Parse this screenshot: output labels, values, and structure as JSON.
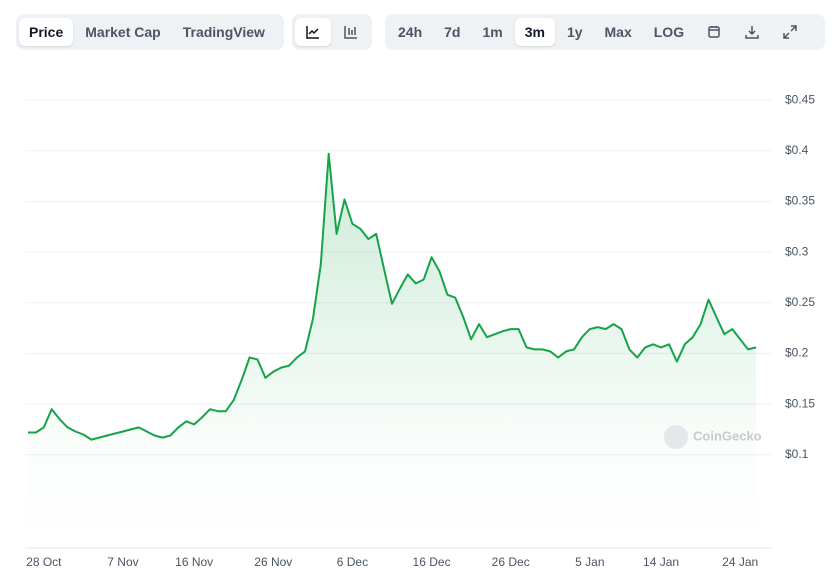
{
  "toolbar": {
    "views": [
      "Price",
      "Market Cap",
      "TradingView"
    ],
    "ranges": [
      "24h",
      "7d",
      "1m",
      "3m",
      "1y",
      "Max",
      "LOG"
    ]
  },
  "chart_data": {
    "type": "line",
    "watermark": "CoinGecko",
    "color": "#16a34a",
    "grid": true,
    "categories": [
      null,
      null,
      "28 Oct",
      null,
      null,
      null,
      null,
      null,
      null,
      null,
      null,
      null,
      "7 Nov",
      null,
      null,
      null,
      null,
      null,
      null,
      null,
      null,
      "16 Nov",
      null,
      null,
      null,
      null,
      null,
      null,
      null,
      null,
      null,
      "26 Nov",
      null,
      null,
      null,
      null,
      null,
      null,
      null,
      null,
      null,
      "6 Dec",
      null,
      null,
      null,
      null,
      null,
      null,
      null,
      null,
      null,
      "16 Dec",
      null,
      null,
      null,
      null,
      null,
      null,
      null,
      null,
      null,
      "26 Dec",
      null,
      null,
      null,
      null,
      null,
      null,
      null,
      null,
      null,
      "5 Jan",
      null,
      null,
      null,
      null,
      null,
      null,
      null,
      null,
      "14 Jan",
      null,
      null,
      null,
      null,
      null,
      null,
      null,
      null,
      null,
      "24 Jan",
      null,
      null
    ],
    "values": [
      0.122,
      0.122,
      0.127,
      0.145,
      0.135,
      0.127,
      0.123,
      0.12,
      0.115,
      0.117,
      0.119,
      0.121,
      0.123,
      0.125,
      0.127,
      0.123,
      0.119,
      0.117,
      0.119,
      0.127,
      0.133,
      0.13,
      0.137,
      0.145,
      0.143,
      0.143,
      0.154,
      0.174,
      0.196,
      0.194,
      0.176,
      0.182,
      0.186,
      0.188,
      0.196,
      0.202,
      0.234,
      0.288,
      0.397,
      0.318,
      0.352,
      0.328,
      0.323,
      0.313,
      0.318,
      0.283,
      0.249,
      0.264,
      0.278,
      0.269,
      0.273,
      0.295,
      0.281,
      0.258,
      0.255,
      0.236,
      0.214,
      0.229,
      0.216,
      0.219,
      0.222,
      0.224,
      0.224,
      0.206,
      0.204,
      0.204,
      0.202,
      0.196,
      0.202,
      0.204,
      0.216,
      0.224,
      0.226,
      0.224,
      0.229,
      0.224,
      0.204,
      0.196,
      0.206,
      0.209,
      0.206,
      0.209,
      0.192,
      0.209,
      0.216,
      0.229,
      0.253,
      0.236,
      0.219,
      0.224,
      0.214,
      0.204,
      0.206
    ],
    "ylim": [
      0.008,
      0.46
    ],
    "yticks": [
      {
        "value": 0.1,
        "label": "$0.1"
      },
      {
        "value": 0.15,
        "label": "$0.15"
      },
      {
        "value": 0.2,
        "label": "$0.2"
      },
      {
        "value": 0.25,
        "label": "$0.25"
      },
      {
        "value": 0.3,
        "label": "$0.3"
      },
      {
        "value": 0.35,
        "label": "$0.35"
      },
      {
        "value": 0.4,
        "label": "$0.4"
      },
      {
        "value": 0.45,
        "label": "$0.45"
      }
    ]
  }
}
